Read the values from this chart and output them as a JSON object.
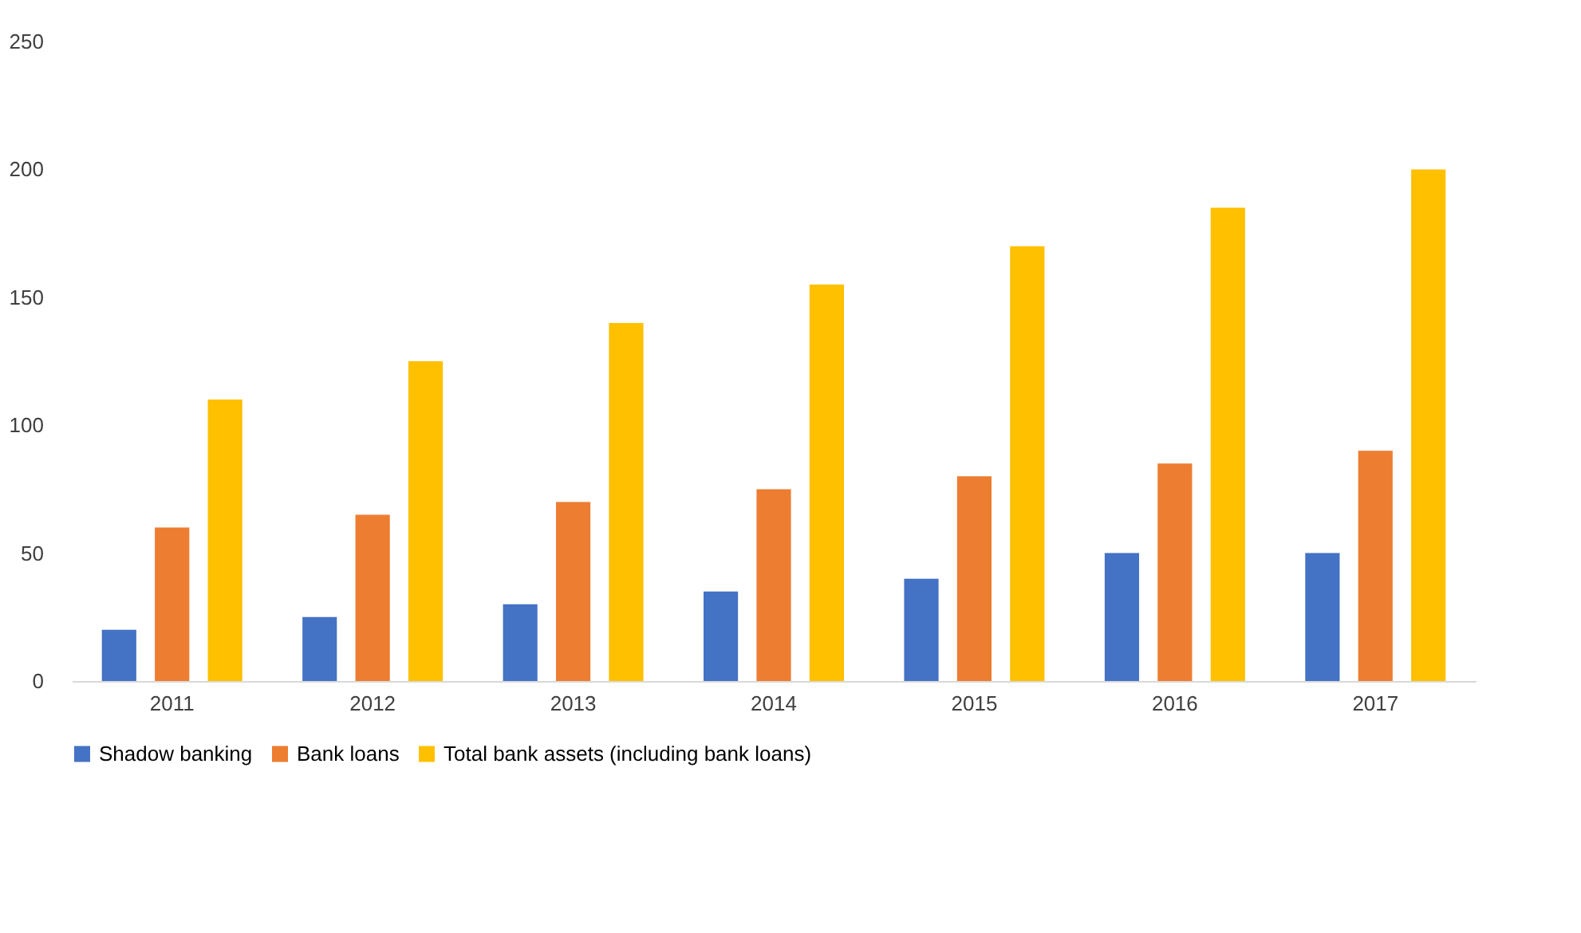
{
  "chart_data": {
    "type": "bar",
    "categories": [
      "2011",
      "2012",
      "2013",
      "2014",
      "2015",
      "2016",
      "2017"
    ],
    "series": [
      {
        "name": "Shadow banking",
        "color": "#4472c4",
        "values": [
          20,
          25,
          30,
          35,
          40,
          50,
          50
        ]
      },
      {
        "name": "Bank loans",
        "color": "#ed7d31",
        "values": [
          60,
          65,
          70,
          75,
          80,
          85,
          90
        ]
      },
      {
        "name": "Total bank assets (including bank loans)",
        "color": "#ffc000",
        "values": [
          110,
          125,
          140,
          155,
          170,
          185,
          200
        ]
      }
    ],
    "ylim": [
      0,
      250
    ],
    "yticks": [
      0,
      50,
      100,
      150,
      200,
      250
    ],
    "grid": false,
    "legend": "bottom"
  }
}
